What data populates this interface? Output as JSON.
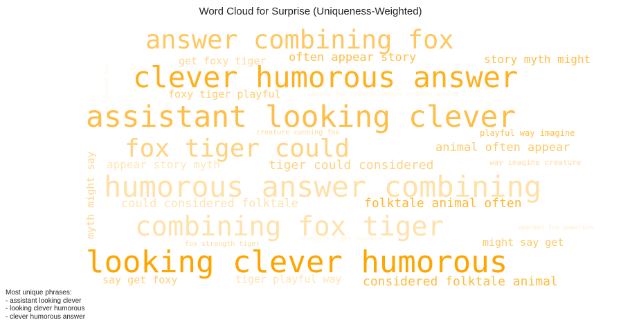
{
  "chart_data": {
    "type": "wordcloud",
    "title": "Word Cloud for Surprise (Uniqueness-Weighted)",
    "base_color": "#ffa500",
    "words": [
      {
        "text": "answer combining fox",
        "weight": 0.72,
        "opacity": 0.62
      },
      {
        "text": "clever humorous answer",
        "weight": 0.8,
        "opacity": 0.88
      },
      {
        "text": "assistant looking clever",
        "weight": 0.83,
        "opacity": 0.72
      },
      {
        "text": "fox tiger could",
        "weight": 0.7,
        "opacity": 0.5
      },
      {
        "text": "humorous answer combining",
        "weight": 0.8,
        "opacity": 0.35
      },
      {
        "text": "combining fox tiger",
        "weight": 0.75,
        "opacity": 0.33
      },
      {
        "text": "looking clever humorous",
        "weight": 0.84,
        "opacity": 1.0
      },
      {
        "text": "get foxy tiger",
        "weight": 0.28,
        "opacity": 0.42
      },
      {
        "text": "often appear story",
        "weight": 0.33,
        "opacity": 0.72
      },
      {
        "text": "story myth might",
        "weight": 0.31,
        "opacity": 0.72
      },
      {
        "text": "foxy tiger playful",
        "weight": 0.29,
        "opacity": 0.55
      },
      {
        "text": "sparked fun strength imagine creature cunning",
        "weight": 0.16,
        "opacity": 0.12
      },
      {
        "text": "creature cunning fox",
        "weight": 0.19,
        "opacity": 0.42
      },
      {
        "text": "playful way imagine",
        "weight": 0.23,
        "opacity": 0.72
      },
      {
        "text": "animal often appear",
        "weight": 0.33,
        "opacity": 0.6
      },
      {
        "text": "appear story myth",
        "weight": 0.3,
        "opacity": 0.28
      },
      {
        "text": "tiger could considered",
        "weight": 0.35,
        "opacity": 0.5
      },
      {
        "text": "way imagine creature",
        "weight": 0.22,
        "opacity": 0.38
      },
      {
        "text": "could considered folktale",
        "weight": 0.33,
        "opacity": 0.32
      },
      {
        "text": "folktale animal often",
        "weight": 0.35,
        "opacity": 0.8
      },
      {
        "text": "sparked fun question",
        "weight": 0.18,
        "opacity": 0.22
      },
      {
        "text": "fox strength tiger",
        "weight": 0.19,
        "opacity": 0.42
      },
      {
        "text": "strength tiger sparked",
        "weight": 0.17,
        "opacity": 0.12
      },
      {
        "text": "might say get",
        "weight": 0.29,
        "opacity": 0.6
      },
      {
        "text": "say get foxy",
        "weight": 0.29,
        "opacity": 0.55
      },
      {
        "text": "tiger playful way",
        "weight": 0.29,
        "opacity": 0.3
      },
      {
        "text": "considered folktale animal",
        "weight": 0.35,
        "opacity": 0.75
      },
      {
        "text": "myth might say",
        "weight": 0.29,
        "opacity": 0.45
      },
      {
        "text": "tiger sparked fun",
        "weight": 0.15,
        "opacity": 0.1
      }
    ]
  },
  "footnote": {
    "heading": "Most unique phrases:",
    "lines": [
      "- assistant looking clever",
      "- looking clever humorous",
      "- clever humorous answer"
    ]
  }
}
